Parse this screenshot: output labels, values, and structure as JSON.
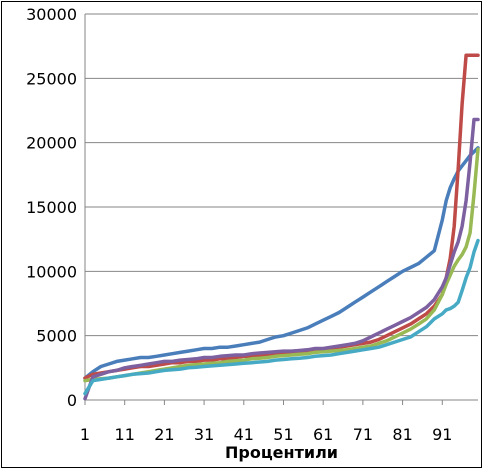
{
  "chart_data": {
    "type": "line",
    "title": "",
    "xlabel": "Процентили",
    "ylabel": "",
    "xlim": [
      1,
      100
    ],
    "ylim": [
      0,
      30000
    ],
    "grid": "horizontal",
    "legend": "none",
    "y_ticks": [
      "0",
      "5000",
      "10000",
      "15000",
      "20000",
      "25000",
      "30000"
    ],
    "x_ticks": [
      "1",
      "11",
      "21",
      "31",
      "41",
      "51",
      "61",
      "71",
      "81",
      "91"
    ],
    "x": [
      1,
      3,
      5,
      7,
      9,
      11,
      13,
      15,
      17,
      19,
      21,
      23,
      25,
      27,
      29,
      31,
      33,
      35,
      37,
      39,
      41,
      43,
      45,
      47,
      49,
      51,
      53,
      55,
      57,
      59,
      61,
      63,
      65,
      67,
      69,
      71,
      73,
      75,
      77,
      79,
      81,
      83,
      85,
      87,
      89,
      91,
      92,
      93,
      94,
      95,
      96,
      97,
      98,
      99,
      100
    ],
    "series": [
      {
        "color": "#4a7ebb",
        "values": [
          1700,
          2200,
          2600,
          2800,
          3000,
          3100,
          3200,
          3300,
          3300,
          3400,
          3500,
          3600,
          3700,
          3800,
          3900,
          4000,
          4000,
          4100,
          4100,
          4200,
          4300,
          4400,
          4500,
          4700,
          4900,
          5000,
          5200,
          5400,
          5600,
          5900,
          6200,
          6500,
          6800,
          7200,
          7600,
          8000,
          8400,
          8800,
          9200,
          9600,
          10000,
          10300,
          10600,
          11100,
          11600,
          14000,
          15500,
          16500,
          17200,
          17800,
          18200,
          18600,
          19000,
          19300,
          19600
        ]
      },
      {
        "color": "#be4b48",
        "values": [
          1700,
          2000,
          2100,
          2200,
          2300,
          2400,
          2500,
          2600,
          2600,
          2700,
          2800,
          2900,
          2900,
          3000,
          3000,
          3100,
          3100,
          3200,
          3200,
          3300,
          3400,
          3400,
          3500,
          3500,
          3600,
          3700,
          3700,
          3800,
          3800,
          3900,
          3900,
          4000,
          4100,
          4200,
          4300,
          4400,
          4500,
          4700,
          5000,
          5300,
          5600,
          5900,
          6300,
          6700,
          7300,
          8200,
          9500,
          11000,
          13500,
          18000,
          23000,
          26800,
          26800,
          26800,
          26800
        ]
      },
      {
        "color": "#98b954",
        "values": [
          1500,
          1600,
          1650,
          1700,
          1800,
          1900,
          2000,
          2100,
          2200,
          2300,
          2400,
          2500,
          2600,
          2700,
          2750,
          2800,
          2850,
          2900,
          3000,
          3050,
          3100,
          3200,
          3250,
          3300,
          3400,
          3450,
          3500,
          3550,
          3600,
          3700,
          3750,
          3800,
          3850,
          3900,
          4000,
          4100,
          4200,
          4400,
          4600,
          4900,
          5200,
          5500,
          5900,
          6300,
          7000,
          8200,
          9000,
          9700,
          10400,
          10900,
          11300,
          11900,
          13000,
          16000,
          19500
        ]
      },
      {
        "color": "#7d60a0",
        "values": [
          100,
          1800,
          2000,
          2200,
          2300,
          2500,
          2600,
          2700,
          2800,
          2900,
          3000,
          3000,
          3100,
          3150,
          3200,
          3300,
          3300,
          3400,
          3450,
          3500,
          3500,
          3600,
          3650,
          3700,
          3750,
          3800,
          3800,
          3850,
          3900,
          4000,
          4000,
          4100,
          4200,
          4300,
          4400,
          4600,
          4900,
          5200,
          5500,
          5800,
          6100,
          6400,
          6800,
          7200,
          7800,
          8800,
          9500,
          10500,
          11500,
          12300,
          13500,
          15500,
          18500,
          21800,
          21800
        ]
      },
      {
        "color": "#46aac5",
        "values": [
          500,
          1500,
          1600,
          1700,
          1800,
          1900,
          2000,
          2050,
          2100,
          2200,
          2300,
          2350,
          2400,
          2500,
          2550,
          2600,
          2650,
          2700,
          2750,
          2800,
          2850,
          2900,
          2950,
          3000,
          3100,
          3150,
          3200,
          3250,
          3300,
          3400,
          3450,
          3500,
          3600,
          3700,
          3800,
          3900,
          4000,
          4100,
          4300,
          4500,
          4700,
          4900,
          5300,
          5700,
          6300,
          6700,
          7000,
          7100,
          7300,
          7600,
          8500,
          9500,
          10300,
          11500,
          12400
        ]
      }
    ]
  }
}
